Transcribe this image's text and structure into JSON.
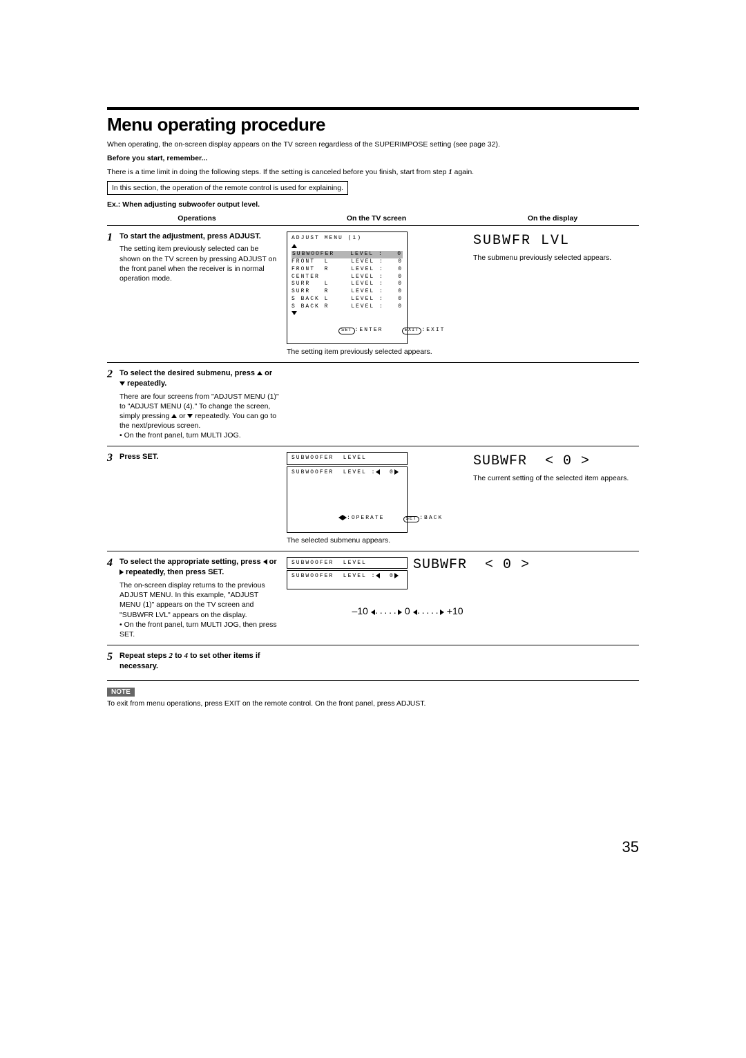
{
  "title": "Menu operating procedure",
  "intro_line1": "When operating, the on-screen display appears on the TV screen regardless of the SUPERIMPOSE setting (see page 32).",
  "intro_bold": "Before you start, remember...",
  "intro_line2_a": "There is a time limit in doing the following steps. If the setting is canceled before you finish, start from step ",
  "intro_line2_num": "1",
  "intro_line2_b": " again.",
  "boxed_note": "In this section, the operation of the remote control is used for explaining.",
  "example_heading": "Ex.: When adjusting subwoofer output level.",
  "col_headers": {
    "ops": "Operations",
    "tv": "On the TV screen",
    "disp": "On the display"
  },
  "step1": {
    "num": "1",
    "heading": "To start the adjustment, press ADJUST.",
    "body": "The setting item previously selected can be shown on the TV screen by pressing ADJUST on the front panel when the receiver is in normal operation mode.",
    "tv": {
      "header": "ADJUST MENU (1)",
      "rows": [
        {
          "l": "SUBWOOFER",
          "r": "LEVEL :   0",
          "hl": true
        },
        {
          "l": "FRONT  L",
          "r": "LEVEL :   0"
        },
        {
          "l": "FRONT  R",
          "r": "LEVEL :   0"
        },
        {
          "l": "CENTER",
          "r": "LEVEL :   0"
        },
        {
          "l": "SURR   L",
          "r": "LEVEL :   0"
        },
        {
          "l": "SURR   R",
          "r": "LEVEL :   0"
        },
        {
          "l": "S BACK L",
          "r": "LEVEL :   0"
        },
        {
          "l": "S BACK R",
          "r": "LEVEL :   0"
        }
      ],
      "ft_set": "SET",
      "ft_set_lbl": ":ENTER",
      "ft_exit": "EXIT",
      "ft_exit_lbl": ":EXIT"
    },
    "tv_caption": "The setting item previously selected appears.",
    "display": "SUBWFR LVL",
    "disp_caption": "The submenu previously selected appears."
  },
  "step2": {
    "num": "2",
    "heading_a": "To select the desired submenu, press ",
    "heading_b": " or ",
    "heading_c": " repeatedly.",
    "body_a": "There are four screens from \"ADJUST MENU (1)\" to \"ADJUST MENU (4).\" To change the screen, simply pressing ",
    "body_b": " or ",
    "body_c": " repeatedly. You can go to the next/previous screen.",
    "bullet": "On the front panel, turn MULTI JOG."
  },
  "step3": {
    "num": "3",
    "heading": "Press SET.",
    "tv_top": "SUBWOOFER  LEVEL",
    "tv_line": "SUBWOOFER  LEVEL :",
    "tv_val": "0",
    "tv_ft_op": ":OPERATE",
    "tv_ft_set": "SET",
    "tv_ft_set_lbl": ":BACK",
    "tv_caption": "The selected submenu appears.",
    "display_a": "SUBWFR",
    "display_b": "< 0 >",
    "disp_caption": "The current setting of the selected item appears."
  },
  "step4": {
    "num": "4",
    "heading_a": "To select the appropriate setting, press ",
    "heading_b": " or ",
    "heading_c": " repeatedly, then press SET.",
    "body": "The on-screen display returns to the previous ADJUST MENU. In this example, \"ADJUST MENU (1)\" appears on the TV screen and \"SUBWFR LVL\" appears on the display.",
    "bullet": "On the front panel, turn MULTI JOG, then press SET.",
    "tv_top": "SUBWOOFER  LEVEL",
    "tv_line": "SUBWOOFER  LEVEL :",
    "tv_val": "0",
    "range_lo": "–10",
    "range_mid": "0",
    "range_hi": "+10",
    "display_a": "SUBWFR",
    "display_b": "< 0 >"
  },
  "step5": {
    "num": "5",
    "heading_a": "Repeat steps ",
    "heading_2": "2",
    "heading_b": " to ",
    "heading_4": "4",
    "heading_c": " to set other items if necessary."
  },
  "note_label": "NOTE",
  "note_text": "To exit from menu operations, press EXIT on the remote control. On the front panel, press ADJUST.",
  "page_number": "35"
}
